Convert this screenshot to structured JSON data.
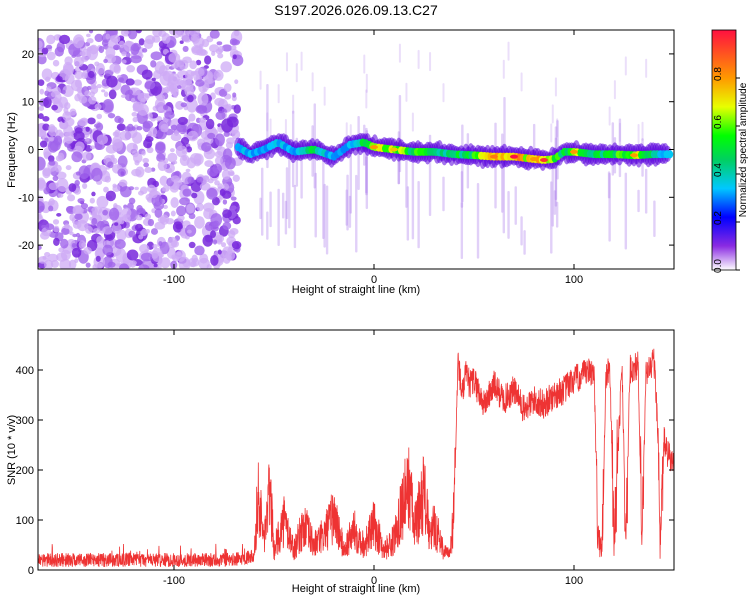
{
  "title": "S197.2026.026.09.13.C27",
  "chart_data": [
    {
      "type": "heatmap",
      "xlabel": "Height of straight line (km)",
      "ylabel": "Frequency (Hz)",
      "xlim": [
        -168,
        150
      ],
      "ylim": [
        -25,
        25
      ],
      "xticks": [
        -100,
        0,
        100
      ],
      "yticks": [
        -20,
        -10,
        0,
        10,
        20
      ],
      "noise_region_x": [
        -168,
        -68
      ],
      "ridge": {
        "x": [
          -68,
          -62,
          -55,
          -48,
          -40,
          -30,
          -20,
          -12,
          -5,
          0,
          10,
          20,
          30,
          40,
          50,
          60,
          70,
          80,
          85,
          90,
          95,
          100,
          110,
          120,
          130,
          140,
          148
        ],
        "freq": [
          0.5,
          -1,
          0,
          1.5,
          -0.5,
          0,
          -1.5,
          1,
          1.5,
          0.5,
          0,
          -0.5,
          -0.5,
          -1,
          -1.2,
          -1.5,
          -1.5,
          -2,
          -2.2,
          -2,
          -0.5,
          -0.5,
          -1,
          -1,
          -1.2,
          -1,
          -1
        ],
        "amplitude": [
          0.3,
          0.35,
          0.3,
          0.35,
          0.3,
          0.5,
          0.3,
          0.35,
          0.5,
          0.7,
          0.65,
          0.55,
          0.5,
          0.5,
          0.55,
          0.75,
          0.9,
          0.7,
          0.85,
          0.6,
          0.5,
          0.7,
          0.5,
          0.55,
          0.7,
          0.45,
          0.35
        ]
      },
      "colorbar": {
        "label": "Normalized spectral amplitude",
        "range": [
          0,
          1
        ],
        "ticks": [
          "0.0",
          "0.2",
          "0.4",
          "0.6",
          "0.8"
        ]
      }
    },
    {
      "type": "line",
      "xlabel": "Height of straight line (km)",
      "ylabel": "SNR (10 * v/v)",
      "xlim": [
        -168,
        150
      ],
      "ylim": [
        0,
        480
      ],
      "xticks": [
        -100,
        0,
        100
      ],
      "yticks": [
        0,
        100,
        200,
        300,
        400
      ],
      "series": [
        {
          "name": "SNR",
          "color": "#ee3333",
          "x": [
            -168,
            -120,
            -70,
            -60,
            -58,
            -55,
            -52,
            -50,
            -45,
            -40,
            -35,
            -30,
            -25,
            -20,
            -15,
            -10,
            -5,
            0,
            5,
            10,
            12,
            15,
            18,
            20,
            25,
            28,
            30,
            35,
            38,
            40,
            42,
            44,
            46,
            48,
            50,
            55,
            60,
            65,
            70,
            75,
            80,
            85,
            90,
            95,
            100,
            105,
            110,
            112,
            114,
            116,
            118,
            120,
            124,
            126,
            128,
            132,
            134,
            136,
            140,
            142,
            143,
            145,
            147,
            150
          ],
          "y": [
            20,
            20,
            20,
            30,
            150,
            60,
            160,
            40,
            100,
            40,
            90,
            50,
            70,
            110,
            40,
            80,
            50,
            90,
            40,
            60,
            100,
            140,
            170,
            80,
            160,
            60,
            90,
            40,
            30,
            120,
            420,
            350,
            390,
            370,
            380,
            330,
            370,
            340,
            360,
            320,
            340,
            330,
            350,
            360,
            380,
            390,
            400,
            60,
            50,
            390,
            400,
            60,
            410,
            60,
            400,
            410,
            60,
            390,
            420,
            280,
            40,
            260,
            230,
            210
          ]
        }
      ]
    }
  ]
}
